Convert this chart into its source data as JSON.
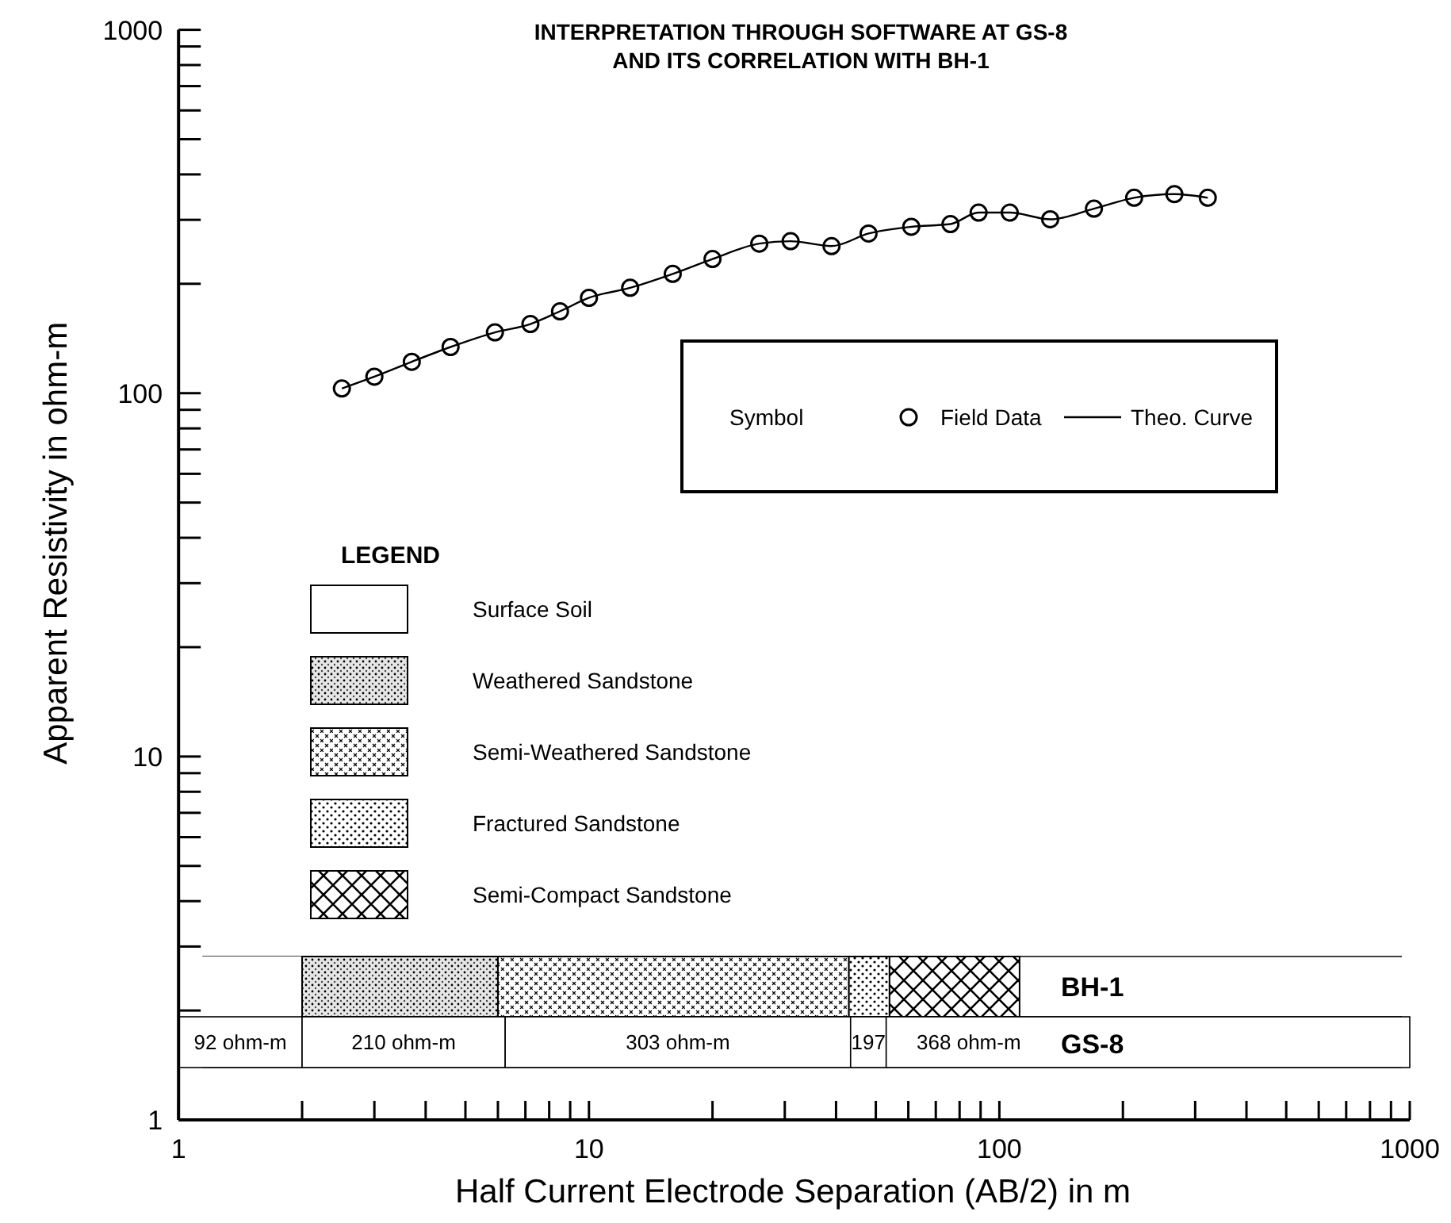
{
  "chart_data": {
    "type": "scatter",
    "title": "INTERPRETATION THROUGH SOFTWARE AT GS-8\nAND ITS CORRELATION WITH BH-1",
    "xlabel": "Half Current Electrode Separation (AB/2) in m",
    "ylabel": "Apparent Resistivity in ohm-m",
    "legend_title": "Symbol",
    "legend": "right",
    "log": "xy",
    "grid": false,
    "xlim": [
      1,
      1000
    ],
    "ylim": [
      1,
      1000
    ],
    "xticks": [
      1,
      {
        "value": 2,
        "label": null
      },
      {
        "value": 3,
        "label": null
      },
      {
        "value": 4,
        "label": null
      },
      {
        "value": 5,
        "label": null
      },
      {
        "value": 6,
        "label": null
      },
      {
        "value": 7,
        "label": null
      },
      {
        "value": 8,
        "label": null
      },
      {
        "value": 9,
        "label": null
      },
      10,
      {
        "value": 20,
        "label": null
      },
      {
        "value": 30,
        "label": null
      },
      {
        "value": 40,
        "label": null
      },
      {
        "value": 50,
        "label": null
      },
      {
        "value": 60,
        "label": null
      },
      {
        "value": 70,
        "label": null
      },
      {
        "value": 80,
        "label": null
      },
      {
        "value": 90,
        "label": null
      },
      100,
      {
        "value": 200,
        "label": null
      },
      {
        "value": 300,
        "label": null
      },
      {
        "value": 400,
        "label": null
      },
      {
        "value": 500,
        "label": null
      },
      {
        "value": 600,
        "label": null
      },
      {
        "value": 700,
        "label": null
      },
      {
        "value": 800,
        "label": null
      },
      {
        "value": 900,
        "label": null
      },
      1000
    ],
    "yticks": [
      1,
      {
        "value": 2,
        "label": null
      },
      {
        "value": 3,
        "label": null
      },
      {
        "value": 4,
        "label": null
      },
      {
        "value": 5,
        "label": null
      },
      {
        "value": 6,
        "label": null
      },
      {
        "value": 7,
        "label": null
      },
      {
        "value": 8,
        "label": null
      },
      {
        "value": 9,
        "label": null
      },
      10,
      {
        "value": 20,
        "label": null
      },
      {
        "value": 30,
        "label": null
      },
      {
        "value": 40,
        "label": null
      },
      {
        "value": 50,
        "label": null
      },
      {
        "value": 60,
        "label": null
      },
      {
        "value": 70,
        "label": null
      },
      {
        "value": 80,
        "label": null
      },
      {
        "value": 90,
        "label": null
      },
      100,
      {
        "value": 200,
        "label": null
      },
      {
        "value": 300,
        "label": null
      },
      {
        "value": 400,
        "label": null
      },
      {
        "value": 500,
        "label": null
      },
      {
        "value": 600,
        "label": null
      },
      {
        "value": 700,
        "label": null
      },
      {
        "value": 800,
        "label": null
      },
      {
        "value": 900,
        "label": null
      },
      1000
    ],
    "x": [
      2.5,
      3,
      3.7,
      4.6,
      5.9,
      7.2,
      8.5,
      10,
      12.6,
      16,
      20,
      26,
      31,
      39,
      48,
      61,
      76,
      89,
      106,
      133,
      170,
      213,
      267,
      322
    ],
    "series": [
      {
        "name": "Field Data",
        "type": "scatter",
        "marker": "circle",
        "color": "#000000",
        "values": [
          103,
          111,
          122,
          134,
          147,
          155,
          168,
          183,
          195,
          213,
          234,
          258,
          262,
          254,
          275,
          287,
          292,
          314,
          314,
          301,
          322,
          345,
          353,
          345
        ]
      },
      {
        "name": "Theo. Curve",
        "type": "line",
        "marker": "none",
        "line_style": "solid",
        "color": "#000000",
        "values": [
          103,
          111,
          122,
          134,
          147,
          155,
          168,
          183,
          195,
          213,
          234,
          258,
          262,
          254,
          275,
          287,
          292,
          314,
          314,
          301,
          322,
          345,
          353,
          345
        ]
      }
    ],
    "bands": [
      {
        "axis": "x",
        "from": 1,
        "to": 2
      },
      {
        "axis": "x",
        "from": 2,
        "to": 6
      },
      {
        "axis": "x",
        "from": 6,
        "to": 43
      },
      {
        "axis": "x",
        "from": 43,
        "to": 54
      },
      {
        "axis": "x",
        "from": 54,
        "to": 112
      },
      {
        "axis": "x",
        "from": 1,
        "to": 2,
        "label": "92 ohm-m"
      },
      {
        "axis": "x",
        "from": 2,
        "to": 6.25,
        "label": "210 ohm-m"
      },
      {
        "axis": "x",
        "from": 6.25,
        "to": 43.4,
        "label": "303 ohm-m"
      },
      {
        "axis": "x",
        "from": 43.4,
        "to": 53,
        "label": "197"
      },
      {
        "axis": "x",
        "from": 53,
        "to": 1000,
        "label": "368 ohm-m"
      }
    ],
    "annotations": [
      "LEGEND",
      "Surface Soil",
      "Weathered Sandstone",
      "Semi-Weathered Sandstone",
      "Fractured Sandstone",
      "Semi-Compact Sandstone",
      "BH-1",
      "GS-8"
    ]
  }
}
